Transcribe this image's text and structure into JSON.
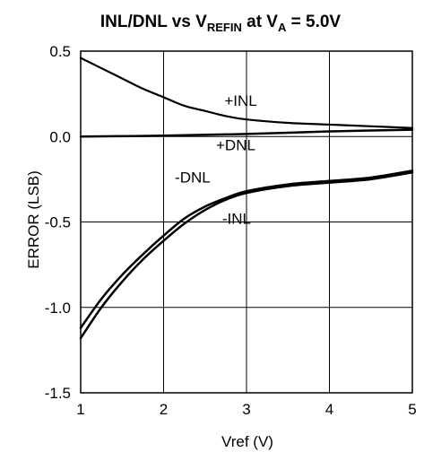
{
  "chart_data": {
    "type": "line",
    "title": {
      "part1": "INL/DNL vs V",
      "sub1": "REFIN",
      "part2": " at V",
      "sub2": "A",
      "part3": " = 5.0V"
    },
    "xlabel": "Vref (V)",
    "ylabel": "ERROR (LSB)",
    "xlim": [
      1,
      5
    ],
    "ylim": [
      -1.5,
      0.5
    ],
    "x_ticks": [
      "1",
      "2",
      "3",
      "4",
      "5"
    ],
    "y_ticks": [
      "0.5",
      "0.0",
      "-0.5",
      "-1.0",
      "-1.5"
    ],
    "grid": true,
    "series": [
      {
        "name": "+INL",
        "x": [
          1.0,
          1.25,
          1.5,
          1.75,
          2.0,
          2.25,
          2.5,
          2.75,
          3.0,
          3.5,
          4.0,
          4.5,
          5.0
        ],
        "y": [
          0.46,
          0.4,
          0.34,
          0.28,
          0.23,
          0.18,
          0.15,
          0.12,
          0.1,
          0.08,
          0.07,
          0.06,
          0.05
        ],
        "width": 2.2
      },
      {
        "name": "+DNL",
        "x": [
          1.0,
          2.0,
          3.0,
          4.0,
          5.0
        ],
        "y": [
          0.0,
          0.005,
          0.015,
          0.03,
          0.04
        ],
        "width": 2.5
      },
      {
        "name": "-DNL",
        "x": [
          1.0,
          1.25,
          1.5,
          1.75,
          2.0,
          2.25,
          2.5,
          2.75,
          3.0,
          3.5,
          4.0,
          4.5,
          5.0
        ],
        "y": [
          -1.12,
          -0.95,
          -0.81,
          -0.69,
          -0.58,
          -0.48,
          -0.41,
          -0.36,
          -0.32,
          -0.28,
          -0.26,
          -0.24,
          -0.2
        ],
        "width": 2.5
      },
      {
        "name": "-INL",
        "x": [
          1.0,
          1.25,
          1.5,
          1.75,
          2.0,
          2.25,
          2.5,
          2.75,
          3.0,
          3.5,
          4.0,
          4.5,
          5.0
        ],
        "y": [
          -1.18,
          -1.0,
          -0.85,
          -0.72,
          -0.61,
          -0.51,
          -0.43,
          -0.37,
          -0.33,
          -0.29,
          -0.27,
          -0.25,
          -0.21
        ],
        "width": 2.5
      }
    ],
    "annotations": [
      {
        "text": "+INL",
        "x": 2.93,
        "y": 0.18
      },
      {
        "text": "+DNL",
        "x": 2.87,
        "y": -0.08
      },
      {
        "text": "-DNL",
        "x": 2.35,
        "y": -0.27
      },
      {
        "text": "-INL",
        "x": 2.88,
        "y": -0.51
      }
    ]
  }
}
